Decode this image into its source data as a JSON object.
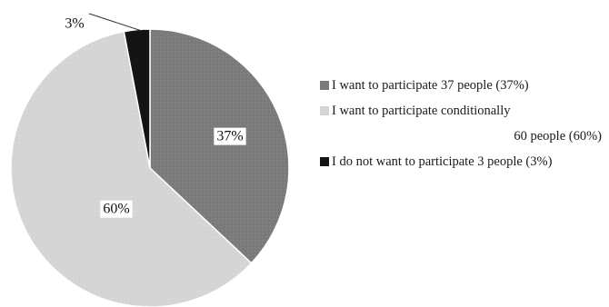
{
  "chart_data": {
    "type": "pie",
    "slices": [
      {
        "label": "37%",
        "value": 37,
        "color": "#7a7a7a"
      },
      {
        "label": "60%",
        "value": 60,
        "color": "#d4d4d4"
      },
      {
        "label": "3%",
        "value": 3,
        "color": "#141414"
      }
    ],
    "legend": {
      "position": "right",
      "items": [
        {
          "text": "I want to participate 37 people (37%)",
          "color": "#7a7a7a"
        },
        {
          "text": "I want to participate conditionally",
          "subtext": "60 people (60%)",
          "color": "#d4d4d4"
        },
        {
          "text": "I do not want to participate 3 people (3%)",
          "color": "#141414"
        }
      ]
    }
  }
}
